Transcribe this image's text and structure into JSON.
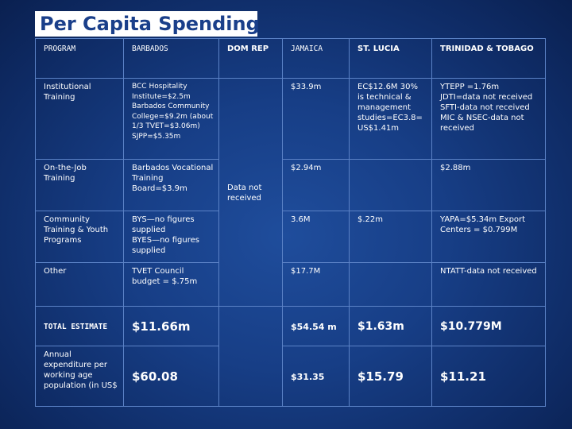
{
  "title": "Per Capita Spending",
  "headers": {
    "program": "PROGRAM",
    "barbados": "BARBADOS",
    "domrep": "DOM REP",
    "jamaica": "JAMAICA",
    "stlucia": "ST. LUCIA",
    "tt": "TRINIDAD & TOBAGO"
  },
  "rows": {
    "institutional": {
      "program": "Institutional Training",
      "barbados": "BCC Hospitality Institute=$2.5m\nBarbados Community College=$9.2m (about 1/3 TVET=$3.06m)\nSJPP=$5.35m",
      "jamaica": "$33.9m",
      "stlucia": "EC$12.6M 30% is technical & management studies=EC3.8= US$1.41m",
      "tt": "YTEPP =1.76m JDTI=data not received SFTI-data not received MIC & NSEC-data not received"
    },
    "ojt": {
      "program": "On-the-Job Training",
      "barbados": "Barbados Vocational Training Board=$3.9m",
      "domrep": "Data not received",
      "jamaica": "$2.94m",
      "tt": "$2.88m"
    },
    "community": {
      "program": "Community Training & Youth Programs",
      "barbados": "BYS—no figures supplied\nBYES—no figures supplied",
      "jamaica": "3.6M",
      "stlucia": "$.22m",
      "tt": "YAPA=$5.34m Export Centers = $0.799M"
    },
    "other": {
      "program": "Other",
      "barbados": "TVET Council budget = $.75m",
      "jamaica": "$17.7M",
      "tt": "NTATT-data not received"
    },
    "total": {
      "program": "TOTAL ESTIMATE",
      "barbados": "$11.66m",
      "jamaica": "$54.54 m",
      "stlucia": "$1.63m",
      "tt": "$10.779M"
    },
    "percapita": {
      "program": "Annual expenditure per working age population (in US$",
      "barbados": "$60.08",
      "jamaica": "$31.35",
      "stlucia": "$15.79",
      "tt": "$11.21"
    }
  }
}
